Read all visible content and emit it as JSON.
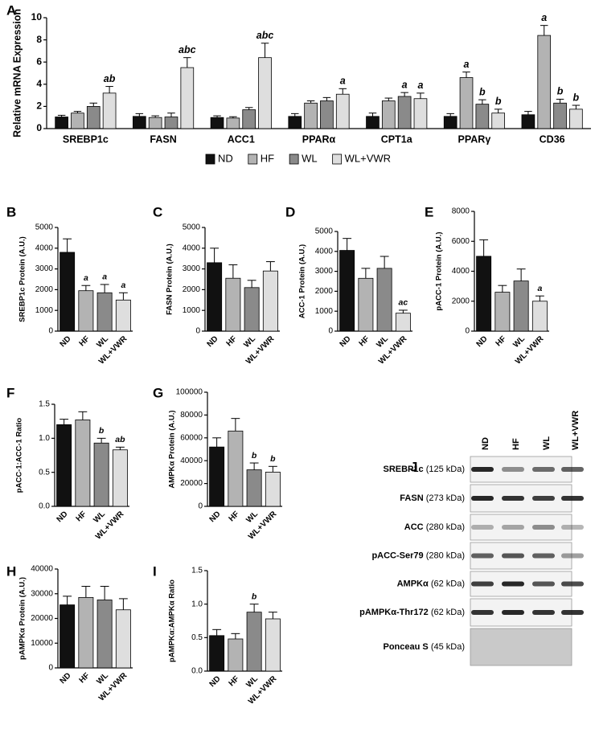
{
  "chart_data": [
    {
      "type": "bar",
      "panel": "A",
      "ylabel": "Relative mRNA Expression",
      "categories": [
        "SREBP1c",
        "FASN",
        "ACC1",
        "PPARα",
        "CPT1a",
        "PPARγ",
        "CD36"
      ],
      "series": [
        {
          "name": "ND",
          "color": "#111111",
          "values": [
            1.05,
            1.1,
            1.0,
            1.1,
            1.1,
            1.1,
            1.25
          ],
          "errors": [
            0.15,
            0.25,
            0.15,
            0.25,
            0.3,
            0.25,
            0.3
          ],
          "letters": [
            null,
            null,
            null,
            null,
            null,
            null,
            null
          ]
        },
        {
          "name": "HF",
          "color": "#b3b3b3",
          "values": [
            1.4,
            1.0,
            0.95,
            2.3,
            2.5,
            4.6,
            8.4
          ],
          "errors": [
            0.15,
            0.15,
            0.12,
            0.2,
            0.25,
            0.5,
            0.9
          ],
          "letters": [
            null,
            null,
            null,
            null,
            null,
            "a",
            "a"
          ]
        },
        {
          "name": "WL",
          "color": "#8a8a8a",
          "values": [
            2.0,
            1.05,
            1.7,
            2.5,
            2.9,
            2.2,
            2.3
          ],
          "errors": [
            0.3,
            0.35,
            0.2,
            0.3,
            0.35,
            0.4,
            0.35
          ],
          "letters": [
            null,
            null,
            null,
            null,
            "a",
            "b",
            "b"
          ]
        },
        {
          "name": "WL+VWR",
          "color": "#dedede",
          "values": [
            3.2,
            5.5,
            6.4,
            3.1,
            2.7,
            1.4,
            1.75
          ],
          "errors": [
            0.6,
            0.9,
            1.3,
            0.5,
            0.5,
            0.35,
            0.35
          ],
          "letters": [
            "ab",
            "abc",
            "abc",
            "a",
            "a",
            "b",
            "b"
          ]
        }
      ],
      "ylim": [
        0,
        10
      ],
      "yticks": [
        0,
        2,
        4,
        6,
        8,
        10
      ],
      "legend": "bottom"
    },
    {
      "type": "bar",
      "panel": "B",
      "ylabel": "SREBP1c Protein (A.U.)",
      "categories": [
        "ND",
        "HF",
        "WL",
        "WL+VWR"
      ],
      "series": [
        {
          "colors": [
            "#111111",
            "#b3b3b3",
            "#8a8a8a",
            "#dedede"
          ],
          "values": [
            3800,
            1950,
            1850,
            1500
          ],
          "errors": [
            650,
            250,
            400,
            350
          ],
          "letters": [
            null,
            "a",
            "a",
            "a"
          ]
        }
      ],
      "ylim": [
        0,
        5000
      ],
      "yticks": [
        0,
        1000,
        2000,
        3000,
        4000,
        5000
      ]
    },
    {
      "type": "bar",
      "panel": "C",
      "ylabel": "FASN Protein (A.U.)",
      "categories": [
        "ND",
        "HF",
        "WL",
        "WL+VWR"
      ],
      "series": [
        {
          "colors": [
            "#111111",
            "#b3b3b3",
            "#8a8a8a",
            "#dedede"
          ],
          "values": [
            3300,
            2550,
            2100,
            2900
          ],
          "errors": [
            700,
            650,
            350,
            450
          ],
          "letters": [
            null,
            null,
            null,
            null
          ]
        }
      ],
      "ylim": [
        0,
        5000
      ],
      "yticks": [
        0,
        1000,
        2000,
        3000,
        4000,
        5000
      ]
    },
    {
      "type": "bar",
      "panel": "D",
      "ylabel": "ACC-1 Protein (A.U.)",
      "categories": [
        "ND",
        "HF",
        "WL",
        "WL+VWR"
      ],
      "series": [
        {
          "colors": [
            "#111111",
            "#b3b3b3",
            "#8a8a8a",
            "#dedede"
          ],
          "values": [
            4050,
            2650,
            3150,
            900
          ],
          "errors": [
            600,
            500,
            600,
            150
          ],
          "letters": [
            null,
            null,
            null,
            "ac"
          ]
        }
      ],
      "ylim": [
        0,
        5000
      ],
      "yticks": [
        0,
        1000,
        2000,
        3000,
        4000,
        5000
      ]
    },
    {
      "type": "bar",
      "panel": "E",
      "ylabel": "pACC-1 Protein (A.U.)",
      "categories": [
        "ND",
        "HF",
        "WL",
        "WL+VWR"
      ],
      "series": [
        {
          "colors": [
            "#111111",
            "#b3b3b3",
            "#8a8a8a",
            "#dedede"
          ],
          "values": [
            5000,
            2600,
            3350,
            2000
          ],
          "errors": [
            1100,
            450,
            800,
            350
          ],
          "letters": [
            null,
            null,
            null,
            "a"
          ]
        }
      ],
      "ylim": [
        0,
        8000
      ],
      "yticks": [
        0,
        2000,
        4000,
        6000,
        8000
      ]
    },
    {
      "type": "bar",
      "panel": "F",
      "ylabel": "pACC-1:ACC-1 Ratio",
      "categories": [
        "ND",
        "HF",
        "WL",
        "WL+VWR"
      ],
      "series": [
        {
          "colors": [
            "#111111",
            "#b3b3b3",
            "#8a8a8a",
            "#dedede"
          ],
          "values": [
            1.2,
            1.27,
            0.93,
            0.83
          ],
          "errors": [
            0.08,
            0.12,
            0.07,
            0.04
          ],
          "letters": [
            null,
            null,
            "b",
            "ab"
          ]
        }
      ],
      "ylim": [
        0,
        1.5
      ],
      "yticks": [
        {
          "value": 0,
          "label": "0.0"
        },
        0.5,
        {
          "value": 1,
          "label": "1.0"
        },
        1.5
      ]
    },
    {
      "type": "bar",
      "panel": "G",
      "ylabel": "AMPKα Protein (A.U.)",
      "categories": [
        "ND",
        "HF",
        "WL",
        "WL+VWR"
      ],
      "series": [
        {
          "colors": [
            "#111111",
            "#b3b3b3",
            "#8a8a8a",
            "#dedede"
          ],
          "values": [
            52000,
            66000,
            32000,
            30000
          ],
          "errors": [
            8000,
            11000,
            6000,
            5000
          ],
          "letters": [
            null,
            null,
            "b",
            "b"
          ]
        }
      ],
      "ylim": [
        0,
        100000
      ],
      "yticks": [
        0,
        20000,
        40000,
        60000,
        80000,
        100000
      ]
    },
    {
      "type": "bar",
      "panel": "H",
      "ylabel": "pAMPKα Protein (A.U.)",
      "categories": [
        "ND",
        "HF",
        "WL",
        "WL+VWR"
      ],
      "series": [
        {
          "colors": [
            "#111111",
            "#b3b3b3",
            "#8a8a8a",
            "#dedede"
          ],
          "values": [
            25500,
            28500,
            27500,
            23500
          ],
          "errors": [
            3500,
            4500,
            5500,
            4500
          ],
          "letters": [
            null,
            null,
            null,
            null
          ]
        }
      ],
      "ylim": [
        0,
        40000
      ],
      "yticks": [
        0,
        10000,
        20000,
        30000,
        40000
      ]
    },
    {
      "type": "bar",
      "panel": "I",
      "ylabel": "pAMPKα:AMPKα Ratio",
      "categories": [
        "ND",
        "HF",
        "WL",
        "WL+VWR"
      ],
      "series": [
        {
          "colors": [
            "#111111",
            "#b3b3b3",
            "#8a8a8a",
            "#dedede"
          ],
          "values": [
            0.53,
            0.48,
            0.88,
            0.78
          ],
          "errors": [
            0.09,
            0.08,
            0.12,
            0.1
          ],
          "letters": [
            null,
            null,
            "b",
            null
          ]
        }
      ],
      "ylim": [
        0,
        1.5
      ],
      "yticks": [
        {
          "value": 0,
          "label": "0.0"
        },
        0.5,
        {
          "value": 1,
          "label": "1.0"
        },
        1.5
      ]
    }
  ],
  "blot": {
    "panel": "J",
    "lanes": [
      "ND",
      "HF",
      "WL",
      "WL+VWR"
    ],
    "rows": [
      {
        "name": "SREBP1c",
        "size": "(125 kDa)"
      },
      {
        "name": "FASN",
        "size": "(273 kDa)"
      },
      {
        "name": "ACC",
        "size": "(280 kDa)"
      },
      {
        "name": "pACC-Ser79",
        "size": "(280 kDa)"
      },
      {
        "name": "AMPKα",
        "size": "(62 kDa)"
      },
      {
        "name": "pAMPKα-Thr172",
        "size": "(62 kDa)"
      },
      {
        "name": "Ponceau S",
        "size": "(45 kDa)"
      }
    ]
  }
}
